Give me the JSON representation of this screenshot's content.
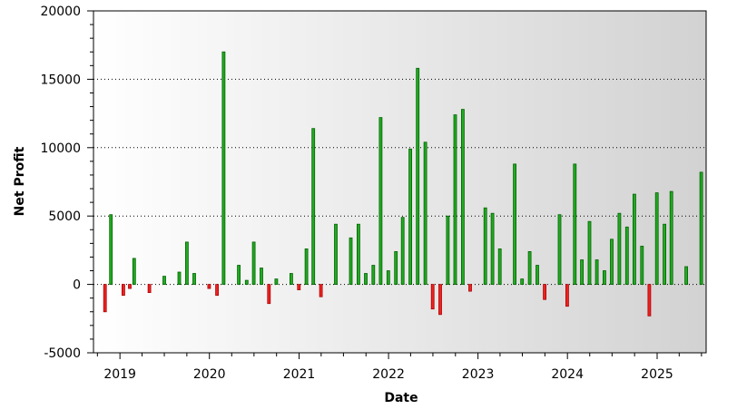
{
  "chart_data": {
    "type": "bar",
    "title": "",
    "xlabel": "Date",
    "ylabel": "Net Profit",
    "ylim": [
      -5000,
      20000
    ],
    "xlim": [
      "2018-09-15",
      "2025-07-20"
    ],
    "y_ticks": [
      "-5000",
      "0",
      "5000",
      "10000",
      "15000",
      "20000"
    ],
    "x_ticks": [
      {
        "date": "2019-01-01",
        "label": "2019"
      },
      {
        "date": "2020-01-01",
        "label": "2020"
      },
      {
        "date": "2021-01-01",
        "label": "2021"
      },
      {
        "date": "2022-01-01",
        "label": "2022"
      },
      {
        "date": "2023-01-01",
        "label": "2023"
      },
      {
        "date": "2024-01-01",
        "label": "2024"
      },
      {
        "date": "2025-01-01",
        "label": "2025"
      }
    ],
    "grid": "horizontal dotted",
    "colors": {
      "positive": "#22aa22",
      "positive_edge": "#006400",
      "negative": "#ee2222",
      "negative_edge": "#aa0000",
      "background_left": "#ffffff",
      "background_right": "#d2d2d2"
    },
    "series": [
      {
        "values": [
          {
            "date": "2018-11-01",
            "value": -2000
          },
          {
            "date": "2018-11-25",
            "value": 5100
          },
          {
            "date": "2019-01-15",
            "value": -800
          },
          {
            "date": "2019-02-10",
            "value": -300
          },
          {
            "date": "2019-02-28",
            "value": 1900
          },
          {
            "date": "2019-05-01",
            "value": -600
          },
          {
            "date": "2019-07-01",
            "value": 600
          },
          {
            "date": "2019-08-31",
            "value": 900
          },
          {
            "date": "2019-10-01",
            "value": 3100
          },
          {
            "date": "2019-10-31",
            "value": 800
          },
          {
            "date": "2019-12-31",
            "value": -300
          },
          {
            "date": "2020-02-01",
            "value": -800
          },
          {
            "date": "2020-02-28",
            "value": 17000
          },
          {
            "date": "2020-04-30",
            "value": 1400
          },
          {
            "date": "2020-06-01",
            "value": 300
          },
          {
            "date": "2020-06-30",
            "value": 3100
          },
          {
            "date": "2020-07-31",
            "value": 1200
          },
          {
            "date": "2020-08-31",
            "value": -1400
          },
          {
            "date": "2020-09-30",
            "value": 400
          },
          {
            "date": "2020-11-30",
            "value": 800
          },
          {
            "date": "2020-12-31",
            "value": -400
          },
          {
            "date": "2021-01-31",
            "value": 2600
          },
          {
            "date": "2021-02-28",
            "value": 11400
          },
          {
            "date": "2021-03-31",
            "value": -900
          },
          {
            "date": "2021-05-31",
            "value": 4400
          },
          {
            "date": "2021-07-31",
            "value": 3400
          },
          {
            "date": "2021-08-31",
            "value": 4400
          },
          {
            "date": "2021-09-30",
            "value": 800
          },
          {
            "date": "2021-10-31",
            "value": 1400
          },
          {
            "date": "2021-11-30",
            "value": 12200
          },
          {
            "date": "2021-12-31",
            "value": 1000
          },
          {
            "date": "2022-01-31",
            "value": 2400
          },
          {
            "date": "2022-02-28",
            "value": 4900
          },
          {
            "date": "2022-03-31",
            "value": 9900
          },
          {
            "date": "2022-04-30",
            "value": 15800
          },
          {
            "date": "2022-05-31",
            "value": 10400
          },
          {
            "date": "2022-06-30",
            "value": -1800
          },
          {
            "date": "2022-07-31",
            "value": -2200
          },
          {
            "date": "2022-08-31",
            "value": 5000
          },
          {
            "date": "2022-09-30",
            "value": 12400
          },
          {
            "date": "2022-10-31",
            "value": 12800
          },
          {
            "date": "2022-11-30",
            "value": -500
          },
          {
            "date": "2023-01-31",
            "value": 5600
          },
          {
            "date": "2023-03-01",
            "value": 5200
          },
          {
            "date": "2023-03-31",
            "value": 2600
          },
          {
            "date": "2023-05-31",
            "value": 8800
          },
          {
            "date": "2023-06-30",
            "value": 400
          },
          {
            "date": "2023-07-31",
            "value": 2400
          },
          {
            "date": "2023-08-31",
            "value": 1400
          },
          {
            "date": "2023-09-30",
            "value": -1100
          },
          {
            "date": "2023-11-30",
            "value": 5100
          },
          {
            "date": "2023-12-31",
            "value": -1600
          },
          {
            "date": "2024-01-31",
            "value": 8800
          },
          {
            "date": "2024-02-29",
            "value": 1800
          },
          {
            "date": "2024-03-31",
            "value": 4600
          },
          {
            "date": "2024-04-30",
            "value": 1800
          },
          {
            "date": "2024-05-31",
            "value": 1000
          },
          {
            "date": "2024-06-30",
            "value": 3300
          },
          {
            "date": "2024-07-31",
            "value": 5200
          },
          {
            "date": "2024-08-31",
            "value": 4200
          },
          {
            "date": "2024-09-30",
            "value": 6600
          },
          {
            "date": "2024-10-31",
            "value": 2800
          },
          {
            "date": "2024-11-30",
            "value": -2300
          },
          {
            "date": "2024-12-31",
            "value": 6700
          },
          {
            "date": "2025-01-31",
            "value": 4400
          },
          {
            "date": "2025-02-28",
            "value": 6800
          },
          {
            "date": "2025-04-30",
            "value": 1300
          },
          {
            "date": "2025-06-30",
            "value": 8200
          }
        ]
      }
    ]
  }
}
